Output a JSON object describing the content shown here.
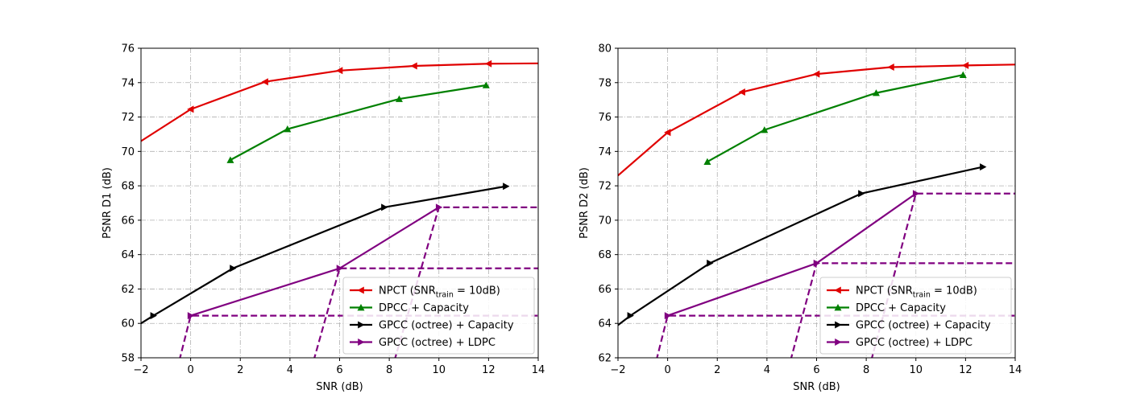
{
  "chart_data": [
    {
      "type": "line",
      "xlabel": "SNR (dB)",
      "ylabel": "PSNR D1 (dB)",
      "xlim": [
        -2,
        14
      ],
      "ylim": [
        58,
        76
      ],
      "xticks": [
        -2,
        0,
        2,
        4,
        6,
        8,
        10,
        12,
        14
      ],
      "yticks": [
        58,
        60,
        62,
        64,
        66,
        68,
        70,
        72,
        74,
        76
      ],
      "grid": true,
      "legend_position": "lower-right",
      "series": [
        {
          "name": "NPCT (SNR",
          "name_sub": "train",
          "name_suffix": " = 10dB)",
          "color": "#e00000",
          "marker": "triangle-left",
          "style": "solid",
          "x": [
            -2,
            0,
            3,
            6,
            9,
            12,
            14
          ],
          "y": [
            70.6,
            72.45,
            74.05,
            74.7,
            74.97,
            75.1,
            75.12
          ],
          "marker_indices": [
            1,
            2,
            3,
            4,
            5
          ]
        },
        {
          "name": "DPCC + Capacity",
          "color": "#008000",
          "marker": "triangle-up",
          "style": "solid",
          "x": [
            1.6,
            3.9,
            8.4,
            11.9
          ],
          "y": [
            69.5,
            71.3,
            73.05,
            73.85
          ],
          "marker_indices": [
            0,
            1,
            2,
            3
          ]
        },
        {
          "name": "GPCC (octree) + Capacity",
          "color": "#000000",
          "marker": "triangle-right",
          "style": "solid",
          "x": [
            -2,
            -1.5,
            1.7,
            7.8,
            12.7
          ],
          "y": [
            60.0,
            60.45,
            63.2,
            66.75,
            67.97
          ],
          "marker_indices": [
            1,
            2,
            3,
            4
          ]
        },
        {
          "name": "GPCC (octree) + LDPC",
          "color": "#800080",
          "marker": "triangle-right",
          "style": "solid",
          "x": [
            0,
            6,
            10
          ],
          "y": [
            60.45,
            63.2,
            66.75
          ],
          "marker_indices": [
            0,
            1,
            2
          ]
        }
      ],
      "ldpc_dashed": [
        {
          "x": [
            -0.55,
            0,
            14
          ],
          "y": [
            57.3,
            60.45,
            60.45
          ]
        },
        {
          "x": [
            4.85,
            6,
            14
          ],
          "y": [
            57.3,
            63.2,
            63.2
          ]
        },
        {
          "x": [
            8.1,
            10,
            14
          ],
          "y": [
            57.3,
            66.75,
            66.75
          ]
        }
      ]
    },
    {
      "type": "line",
      "xlabel": "SNR (dB)",
      "ylabel": "PSNR D2 (dB)",
      "xlim": [
        -2,
        14
      ],
      "ylim": [
        62,
        80
      ],
      "xticks": [
        -2,
        0,
        2,
        4,
        6,
        8,
        10,
        12,
        14
      ],
      "yticks": [
        62,
        64,
        66,
        68,
        70,
        72,
        74,
        76,
        78,
        80
      ],
      "grid": true,
      "legend_position": "lower-right",
      "series": [
        {
          "name": "NPCT (SNR",
          "name_sub": "train",
          "name_suffix": " = 10dB)",
          "color": "#e00000",
          "marker": "triangle-left",
          "style": "solid",
          "x": [
            -2,
            0,
            3,
            6,
            9,
            12,
            14
          ],
          "y": [
            72.6,
            75.1,
            77.45,
            78.5,
            78.9,
            79.0,
            79.05
          ],
          "marker_indices": [
            1,
            2,
            3,
            4,
            5
          ]
        },
        {
          "name": "DPCC + Capacity",
          "color": "#008000",
          "marker": "triangle-up",
          "style": "solid",
          "x": [
            1.6,
            3.9,
            8.4,
            11.9
          ],
          "y": [
            73.4,
            75.25,
            77.4,
            78.45
          ],
          "marker_indices": [
            0,
            1,
            2,
            3
          ]
        },
        {
          "name": "GPCC (octree) + Capacity",
          "color": "#000000",
          "marker": "triangle-right",
          "style": "solid",
          "x": [
            -2,
            -1.5,
            1.7,
            7.8,
            12.7
          ],
          "y": [
            63.9,
            64.45,
            67.5,
            71.55,
            73.1
          ],
          "marker_indices": [
            1,
            2,
            3,
            4
          ]
        },
        {
          "name": "GPCC (octree) + LDPC",
          "color": "#800080",
          "marker": "triangle-right",
          "style": "solid",
          "x": [
            0,
            6,
            10
          ],
          "y": [
            64.45,
            67.5,
            71.55
          ],
          "marker_indices": [
            0,
            1,
            2
          ]
        }
      ],
      "ldpc_dashed": [
        {
          "x": [
            -0.55,
            0,
            14
          ],
          "y": [
            61.3,
            64.45,
            64.45
          ]
        },
        {
          "x": [
            4.85,
            6,
            14
          ],
          "y": [
            61.3,
            67.5,
            67.5
          ]
        },
        {
          "x": [
            8.1,
            10,
            14
          ],
          "y": [
            61.3,
            71.55,
            71.55
          ]
        }
      ]
    }
  ]
}
